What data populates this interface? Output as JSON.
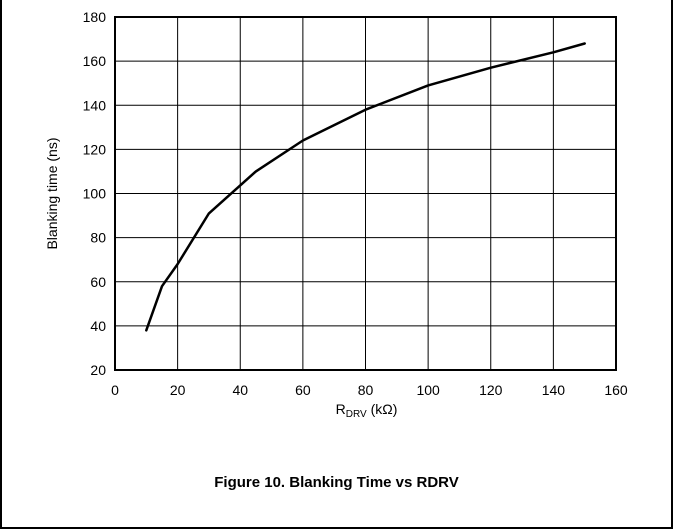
{
  "chart_data": {
    "type": "line",
    "caption": "Figure 10. Blanking Time vs RDRV",
    "xlabel": {
      "main": "R",
      "sub": "DRV",
      "unit": " (kΩ)"
    },
    "ylabel": "Blanking time (ns)",
    "xlim": [
      0,
      160
    ],
    "ylim": [
      20,
      180
    ],
    "xticks": [
      "0",
      "20",
      "40",
      "60",
      "80",
      "100",
      "120",
      "140",
      "160"
    ],
    "yticks": [
      "20",
      "40",
      "60",
      "80",
      "100",
      "120",
      "140",
      "160",
      "180"
    ],
    "grid": true,
    "series": [
      {
        "x": [
          10,
          15,
          20,
          30,
          45,
          60,
          80,
          100,
          120,
          140,
          150
        ],
        "y": [
          38,
          58,
          68,
          91,
          110,
          124,
          138,
          149,
          157,
          164,
          168
        ]
      }
    ]
  }
}
